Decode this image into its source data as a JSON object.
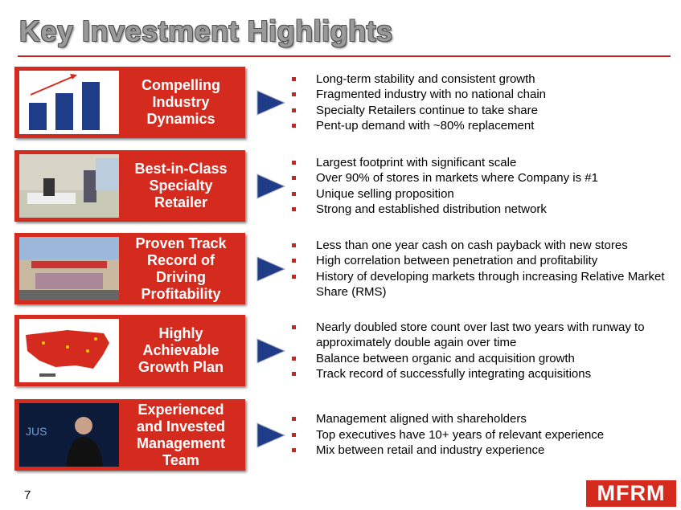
{
  "header": {
    "title": "Key Investment Highlights"
  },
  "highlights": [
    {
      "heading": [
        "Compelling",
        "Industry",
        "Dynamics"
      ],
      "bullets": [
        "Long-term stability and consistent growth",
        "Fragmented industry with no national chain",
        "Specialty Retailers continue to take share",
        "Pent-up demand with ~80% replacement"
      ]
    },
    {
      "heading": [
        "Best-in-Class",
        "Specialty",
        "Retailer"
      ],
      "bullets": [
        "Largest footprint with significant scale",
        "Over 90% of stores in markets where Company is #1",
        "Unique selling proposition",
        "Strong and established distribution network"
      ]
    },
    {
      "heading": [
        "Proven Track",
        "Record of",
        "Driving",
        "Profitability"
      ],
      "bullets": [
        "Less than one year cash on cash payback with new stores",
        "High correlation between penetration and profitability",
        "History of developing markets through increasing Relative Market Share (RMS)"
      ]
    },
    {
      "heading": [
        "Highly",
        "Achievable",
        "Growth Plan"
      ],
      "bullets": [
        "Nearly doubled store count over last two years with runway to approximately double again over time",
        "Balance between organic and acquisition growth",
        "Track record of successfully integrating acquisitions"
      ]
    },
    {
      "heading": [
        "Experienced",
        "and Invested",
        "Management",
        "Team"
      ],
      "bullets": [
        "Management aligned with shareholders",
        "Top executives have 10+ years of relevant experience",
        "Mix between retail and industry experience"
      ]
    }
  ],
  "footer": {
    "page_number": "7",
    "logo": "MFRM"
  }
}
